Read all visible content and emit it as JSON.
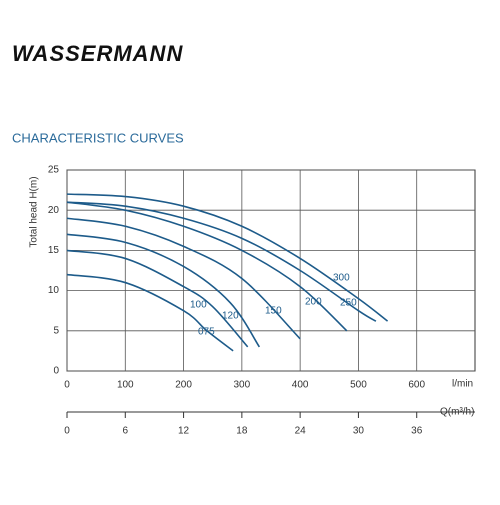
{
  "logo": "WASSERMANN",
  "chart_data": {
    "type": "line",
    "title": "CHARACTERISTIC CURVES",
    "ylabel": "Total head  H(m)",
    "xlabel": "l/min",
    "x2label": "Q(m³/h)",
    "xlim": [
      0,
      700
    ],
    "xticks": [
      0,
      100,
      200,
      300,
      400,
      500,
      600
    ],
    "x2lim": [
      0,
      42
    ],
    "x2ticks": [
      0,
      6,
      12,
      18,
      24,
      30,
      36
    ],
    "ylim": [
      0,
      25
    ],
    "yticks": [
      0,
      5,
      10,
      15,
      20,
      25
    ],
    "grid": true,
    "series": [
      {
        "name": "300",
        "color": "#1d5b8a",
        "x": [
          0,
          100,
          200,
          300,
          400,
          500,
          550
        ],
        "values": [
          22,
          21.7,
          20.5,
          18,
          14,
          9,
          6.2
        ]
      },
      {
        "name": "250",
        "color": "#1d5b8a",
        "x": [
          0,
          100,
          200,
          300,
          400,
          500,
          530
        ],
        "values": [
          21,
          20.5,
          19,
          16.5,
          12.5,
          7.5,
          6.2
        ]
      },
      {
        "name": "200",
        "color": "#1d5b8a",
        "x": [
          0,
          100,
          200,
          300,
          400,
          480
        ],
        "values": [
          21,
          20,
          18,
          15,
          10.5,
          5
        ]
      },
      {
        "name": "150",
        "color": "#1d5b8a",
        "x": [
          0,
          100,
          200,
          300,
          400
        ],
        "values": [
          19,
          18,
          15.5,
          11.5,
          4
        ]
      },
      {
        "name": "120",
        "color": "#1d5b8a",
        "x": [
          0,
          100,
          200,
          280,
          330
        ],
        "values": [
          17,
          16,
          13,
          8.5,
          3
        ]
      },
      {
        "name": "100",
        "color": "#1d5b8a",
        "x": [
          0,
          100,
          200,
          250,
          310
        ],
        "values": [
          15,
          14,
          10.5,
          8,
          3
        ]
      },
      {
        "name": "075",
        "color": "#1d5b8a",
        "x": [
          0,
          100,
          200,
          240,
          285
        ],
        "values": [
          12,
          11,
          7.5,
          5,
          2.5
        ]
      }
    ]
  }
}
